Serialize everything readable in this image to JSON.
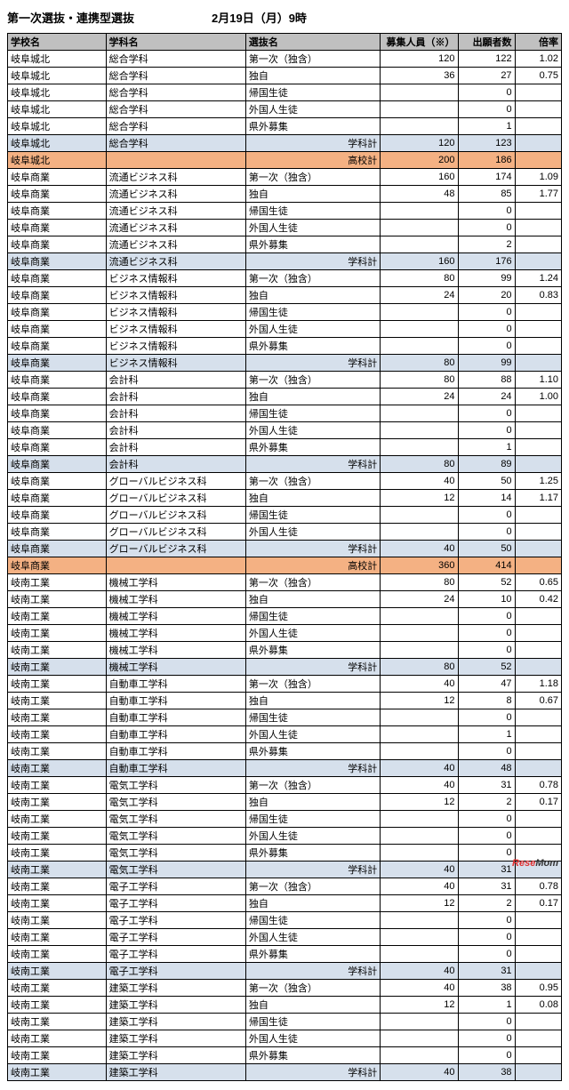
{
  "header": {
    "title": "第一次選抜・連携型選抜",
    "date": "2月19日（月）9時"
  },
  "colors": {
    "header_bg": "#c0c0c0",
    "subtotal_bg": "#d6e0ec",
    "total_bg": "#f4b183",
    "border": "#000000",
    "text": "#000000",
    "background": "#ffffff"
  },
  "columns": [
    {
      "key": "school",
      "label": "学校名",
      "align": "left"
    },
    {
      "key": "dept",
      "label": "学科名",
      "align": "left"
    },
    {
      "key": "select",
      "label": "選抜名",
      "align": "left"
    },
    {
      "key": "cap",
      "label": "募集人員（※）",
      "align": "right"
    },
    {
      "key": "app",
      "label": "出願者数",
      "align": "right"
    },
    {
      "key": "rate",
      "label": "倍率",
      "align": "right"
    }
  ],
  "rows": [
    {
      "t": "n",
      "school": "岐阜城北",
      "dept": "総合学科",
      "select": "第一次（独含）",
      "cap": "120",
      "app": "122",
      "rate": "1.02"
    },
    {
      "t": "n",
      "school": "岐阜城北",
      "dept": "総合学科",
      "select": "独自",
      "cap": "36",
      "app": "27",
      "rate": "0.75"
    },
    {
      "t": "n",
      "school": "岐阜城北",
      "dept": "総合学科",
      "select": "帰国生徒",
      "cap": "",
      "app": "0",
      "rate": ""
    },
    {
      "t": "n",
      "school": "岐阜城北",
      "dept": "総合学科",
      "select": "外国人生徒",
      "cap": "",
      "app": "0",
      "rate": ""
    },
    {
      "t": "n",
      "school": "岐阜城北",
      "dept": "総合学科",
      "select": "県外募集",
      "cap": "",
      "app": "1",
      "rate": ""
    },
    {
      "t": "s",
      "school": "岐阜城北",
      "dept": "総合学科",
      "select": "学科計",
      "cap": "120",
      "app": "123",
      "rate": ""
    },
    {
      "t": "t",
      "school": "岐阜城北",
      "dept": "",
      "select": "高校計",
      "cap": "200",
      "app": "186",
      "rate": ""
    },
    {
      "t": "n",
      "school": "岐阜商業",
      "dept": "流通ビジネス科",
      "select": "第一次（独含）",
      "cap": "160",
      "app": "174",
      "rate": "1.09"
    },
    {
      "t": "n",
      "school": "岐阜商業",
      "dept": "流通ビジネス科",
      "select": "独自",
      "cap": "48",
      "app": "85",
      "rate": "1.77"
    },
    {
      "t": "n",
      "school": "岐阜商業",
      "dept": "流通ビジネス科",
      "select": "帰国生徒",
      "cap": "",
      "app": "0",
      "rate": ""
    },
    {
      "t": "n",
      "school": "岐阜商業",
      "dept": "流通ビジネス科",
      "select": "外国人生徒",
      "cap": "",
      "app": "0",
      "rate": ""
    },
    {
      "t": "n",
      "school": "岐阜商業",
      "dept": "流通ビジネス科",
      "select": "県外募集",
      "cap": "",
      "app": "2",
      "rate": ""
    },
    {
      "t": "s",
      "school": "岐阜商業",
      "dept": "流通ビジネス科",
      "select": "学科計",
      "cap": "160",
      "app": "176",
      "rate": ""
    },
    {
      "t": "n",
      "school": "岐阜商業",
      "dept": "ビジネス情報科",
      "select": "第一次（独含）",
      "cap": "80",
      "app": "99",
      "rate": "1.24"
    },
    {
      "t": "n",
      "school": "岐阜商業",
      "dept": "ビジネス情報科",
      "select": "独自",
      "cap": "24",
      "app": "20",
      "rate": "0.83"
    },
    {
      "t": "n",
      "school": "岐阜商業",
      "dept": "ビジネス情報科",
      "select": "帰国生徒",
      "cap": "",
      "app": "0",
      "rate": ""
    },
    {
      "t": "n",
      "school": "岐阜商業",
      "dept": "ビジネス情報科",
      "select": "外国人生徒",
      "cap": "",
      "app": "0",
      "rate": ""
    },
    {
      "t": "n",
      "school": "岐阜商業",
      "dept": "ビジネス情報科",
      "select": "県外募集",
      "cap": "",
      "app": "0",
      "rate": ""
    },
    {
      "t": "s",
      "school": "岐阜商業",
      "dept": "ビジネス情報科",
      "select": "学科計",
      "cap": "80",
      "app": "99",
      "rate": ""
    },
    {
      "t": "n",
      "school": "岐阜商業",
      "dept": "会計科",
      "select": "第一次（独含）",
      "cap": "80",
      "app": "88",
      "rate": "1.10"
    },
    {
      "t": "n",
      "school": "岐阜商業",
      "dept": "会計科",
      "select": "独自",
      "cap": "24",
      "app": "24",
      "rate": "1.00"
    },
    {
      "t": "n",
      "school": "岐阜商業",
      "dept": "会計科",
      "select": "帰国生徒",
      "cap": "",
      "app": "0",
      "rate": ""
    },
    {
      "t": "n",
      "school": "岐阜商業",
      "dept": "会計科",
      "select": "外国人生徒",
      "cap": "",
      "app": "0",
      "rate": ""
    },
    {
      "t": "n",
      "school": "岐阜商業",
      "dept": "会計科",
      "select": "県外募集",
      "cap": "",
      "app": "1",
      "rate": ""
    },
    {
      "t": "s",
      "school": "岐阜商業",
      "dept": "会計科",
      "select": "学科計",
      "cap": "80",
      "app": "89",
      "rate": ""
    },
    {
      "t": "n",
      "school": "岐阜商業",
      "dept": "グローバルビジネス科",
      "select": "第一次（独含）",
      "cap": "40",
      "app": "50",
      "rate": "1.25"
    },
    {
      "t": "n",
      "school": "岐阜商業",
      "dept": "グローバルビジネス科",
      "select": "独自",
      "cap": "12",
      "app": "14",
      "rate": "1.17"
    },
    {
      "t": "n",
      "school": "岐阜商業",
      "dept": "グローバルビジネス科",
      "select": "帰国生徒",
      "cap": "",
      "app": "0",
      "rate": ""
    },
    {
      "t": "n",
      "school": "岐阜商業",
      "dept": "グローバルビジネス科",
      "select": "外国人生徒",
      "cap": "",
      "app": "0",
      "rate": ""
    },
    {
      "t": "s",
      "school": "岐阜商業",
      "dept": "グローバルビジネス科",
      "select": "学科計",
      "cap": "40",
      "app": "50",
      "rate": ""
    },
    {
      "t": "t",
      "school": "岐阜商業",
      "dept": "",
      "select": "高校計",
      "cap": "360",
      "app": "414",
      "rate": ""
    },
    {
      "t": "n",
      "school": "岐南工業",
      "dept": "機械工学科",
      "select": "第一次（独含）",
      "cap": "80",
      "app": "52",
      "rate": "0.65"
    },
    {
      "t": "n",
      "school": "岐南工業",
      "dept": "機械工学科",
      "select": "独自",
      "cap": "24",
      "app": "10",
      "rate": "0.42"
    },
    {
      "t": "n",
      "school": "岐南工業",
      "dept": "機械工学科",
      "select": "帰国生徒",
      "cap": "",
      "app": "0",
      "rate": ""
    },
    {
      "t": "n",
      "school": "岐南工業",
      "dept": "機械工学科",
      "select": "外国人生徒",
      "cap": "",
      "app": "0",
      "rate": ""
    },
    {
      "t": "n",
      "school": "岐南工業",
      "dept": "機械工学科",
      "select": "県外募集",
      "cap": "",
      "app": "0",
      "rate": ""
    },
    {
      "t": "s",
      "school": "岐南工業",
      "dept": "機械工学科",
      "select": "学科計",
      "cap": "80",
      "app": "52",
      "rate": ""
    },
    {
      "t": "n",
      "school": "岐南工業",
      "dept": "自動車工学科",
      "select": "第一次（独含）",
      "cap": "40",
      "app": "47",
      "rate": "1.18"
    },
    {
      "t": "n",
      "school": "岐南工業",
      "dept": "自動車工学科",
      "select": "独自",
      "cap": "12",
      "app": "8",
      "rate": "0.67"
    },
    {
      "t": "n",
      "school": "岐南工業",
      "dept": "自動車工学科",
      "select": "帰国生徒",
      "cap": "",
      "app": "0",
      "rate": ""
    },
    {
      "t": "n",
      "school": "岐南工業",
      "dept": "自動車工学科",
      "select": "外国人生徒",
      "cap": "",
      "app": "1",
      "rate": ""
    },
    {
      "t": "n",
      "school": "岐南工業",
      "dept": "自動車工学科",
      "select": "県外募集",
      "cap": "",
      "app": "0",
      "rate": ""
    },
    {
      "t": "s",
      "school": "岐南工業",
      "dept": "自動車工学科",
      "select": "学科計",
      "cap": "40",
      "app": "48",
      "rate": ""
    },
    {
      "t": "n",
      "school": "岐南工業",
      "dept": "電気工学科",
      "select": "第一次（独含）",
      "cap": "40",
      "app": "31",
      "rate": "0.78"
    },
    {
      "t": "n",
      "school": "岐南工業",
      "dept": "電気工学科",
      "select": "独自",
      "cap": "12",
      "app": "2",
      "rate": "0.17"
    },
    {
      "t": "n",
      "school": "岐南工業",
      "dept": "電気工学科",
      "select": "帰国生徒",
      "cap": "",
      "app": "0",
      "rate": ""
    },
    {
      "t": "n",
      "school": "岐南工業",
      "dept": "電気工学科",
      "select": "外国人生徒",
      "cap": "",
      "app": "0",
      "rate": ""
    },
    {
      "t": "n",
      "school": "岐南工業",
      "dept": "電気工学科",
      "select": "県外募集",
      "cap": "",
      "app": "0",
      "rate": ""
    },
    {
      "t": "s",
      "school": "岐南工業",
      "dept": "電気工学科",
      "select": "学科計",
      "cap": "40",
      "app": "31",
      "rate": ""
    },
    {
      "t": "n",
      "school": "岐南工業",
      "dept": "電子工学科",
      "select": "第一次（独含）",
      "cap": "40",
      "app": "31",
      "rate": "0.78"
    },
    {
      "t": "n",
      "school": "岐南工業",
      "dept": "電子工学科",
      "select": "独自",
      "cap": "12",
      "app": "2",
      "rate": "0.17"
    },
    {
      "t": "n",
      "school": "岐南工業",
      "dept": "電子工学科",
      "select": "帰国生徒",
      "cap": "",
      "app": "0",
      "rate": ""
    },
    {
      "t": "n",
      "school": "岐南工業",
      "dept": "電子工学科",
      "select": "外国人生徒",
      "cap": "",
      "app": "0",
      "rate": ""
    },
    {
      "t": "n",
      "school": "岐南工業",
      "dept": "電子工学科",
      "select": "県外募集",
      "cap": "",
      "app": "0",
      "rate": ""
    },
    {
      "t": "s",
      "school": "岐南工業",
      "dept": "電子工学科",
      "select": "学科計",
      "cap": "40",
      "app": "31",
      "rate": ""
    },
    {
      "t": "n",
      "school": "岐南工業",
      "dept": "建築工学科",
      "select": "第一次（独含）",
      "cap": "40",
      "app": "38",
      "rate": "0.95"
    },
    {
      "t": "n",
      "school": "岐南工業",
      "dept": "建築工学科",
      "select": "独自",
      "cap": "12",
      "app": "1",
      "rate": "0.08"
    },
    {
      "t": "n",
      "school": "岐南工業",
      "dept": "建築工学科",
      "select": "帰国生徒",
      "cap": "",
      "app": "0",
      "rate": ""
    },
    {
      "t": "n",
      "school": "岐南工業",
      "dept": "建築工学科",
      "select": "外国人生徒",
      "cap": "",
      "app": "0",
      "rate": ""
    },
    {
      "t": "n",
      "school": "岐南工業",
      "dept": "建築工学科",
      "select": "県外募集",
      "cap": "",
      "app": "0",
      "rate": ""
    },
    {
      "t": "s",
      "school": "岐南工業",
      "dept": "建築工学科",
      "select": "学科計",
      "cap": "40",
      "app": "38",
      "rate": ""
    }
  ],
  "logo": {
    "part1": "Rese",
    "part2": "Mom"
  }
}
